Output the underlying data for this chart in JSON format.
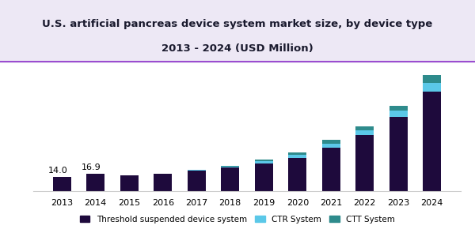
{
  "title_line1": "U.S. artificial pancreas device system market size, by device type",
  "title_line2": "2013 - 2024 (USD Million)",
  "years": [
    2013,
    2014,
    2015,
    2016,
    2017,
    2018,
    2019,
    2020,
    2021,
    2022,
    2023,
    2024
  ],
  "threshold": [
    14.0,
    16.9,
    15.5,
    17.0,
    20.0,
    23.0,
    27.0,
    32.0,
    42.0,
    55.0,
    72.0,
    97.0
  ],
  "ctr": [
    0.0,
    0.0,
    0.0,
    0.0,
    0.5,
    1.0,
    2.5,
    3.5,
    4.5,
    4.5,
    6.5,
    8.5
  ],
  "ctt": [
    0.0,
    0.0,
    0.0,
    0.0,
    0.5,
    0.8,
    1.2,
    2.0,
    3.5,
    3.5,
    5.0,
    8.0
  ],
  "color_threshold": "#1e0a3c",
  "color_ctr": "#5bc8e8",
  "color_ctt": "#2e8b8c",
  "annotation_2013": "14.0",
  "annotation_2014": "16.9",
  "legend_labels": [
    "Threshold suspended device system",
    "CTR System",
    "CTT System"
  ],
  "title_fontsize": 9.5,
  "label_fontsize": 8,
  "header_bg_color": "#ede8f5",
  "bar_width": 0.55,
  "ylim": [
    0,
    125
  ],
  "purple_line_color": "#8b2fc9"
}
